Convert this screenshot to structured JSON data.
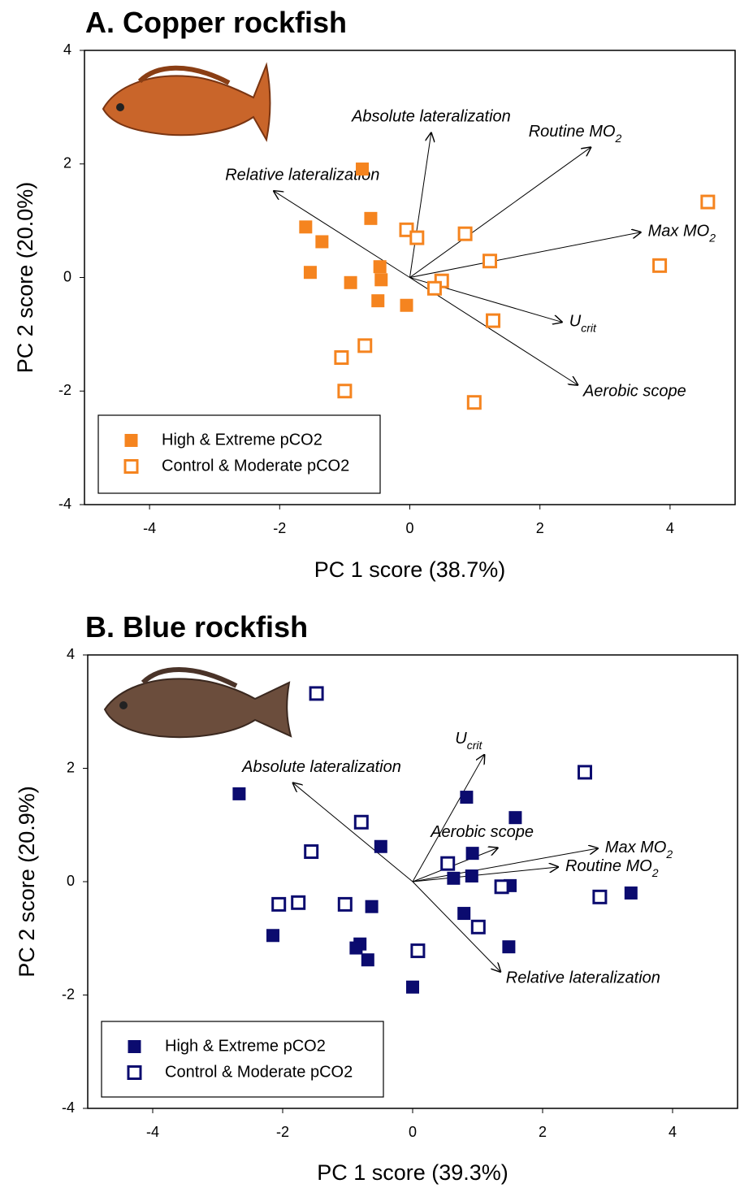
{
  "chart_data": [
    {
      "type": "scatter",
      "title": "A. Copper rockfish",
      "x_label": "PC 1 score (38.7%)",
      "y_label": "PC 2 score (20.0%)",
      "xlim": [
        -5,
        5
      ],
      "ylim": [
        -4,
        4
      ],
      "xticks": [
        -4,
        -2,
        0,
        2,
        4
      ],
      "yticks": [
        -4,
        -2,
        0,
        2,
        4
      ],
      "series": [
        {
          "name": "High & Extreme pCO2",
          "color": "#f5841f",
          "filled": true,
          "x": [
            -0.73,
            -1.6,
            -1.35,
            -0.6,
            -1.53,
            -0.91,
            -0.46,
            -0.44,
            -0.49,
            -0.05
          ],
          "values": [
            1.91,
            0.89,
            0.63,
            1.04,
            0.09,
            -0.09,
            0.19,
            -0.04,
            -0.41,
            -0.49
          ]
        },
        {
          "name": "Control & Moderate pCO2",
          "color": "#f5841f",
          "filled": false,
          "x": [
            -0.05,
            0.11,
            0.85,
            1.23,
            0.49,
            0.38,
            1.28,
            0.99,
            -1.05,
            -0.69,
            -1.0,
            3.84,
            4.58
          ],
          "values": [
            0.84,
            0.7,
            0.77,
            0.29,
            -0.06,
            -0.19,
            -0.76,
            -2.2,
            -1.41,
            -1.2,
            -2.0,
            0.21,
            1.33
          ]
        }
      ],
      "loadings": [
        {
          "text": "Absolute lateralization",
          "x": 0.33,
          "y": 2.56
        },
        {
          "text": "Routine MO",
          "sub": "2",
          "x": 2.79,
          "y": 2.3
        },
        {
          "text": "Max MO",
          "sub": "2",
          "x": 3.56,
          "y": 0.8
        },
        {
          "text": "U",
          "sub": "crit",
          "x": 2.35,
          "y": -0.79
        },
        {
          "text": "Aerobic scope",
          "x": 2.59,
          "y": -1.9
        },
        {
          "text": "Relative lateralization",
          "x": -2.1,
          "y": 1.53
        }
      ]
    },
    {
      "type": "scatter",
      "title": "B. Blue rockfish",
      "x_label": "PC 1 score (39.3%)",
      "y_label": "PC 2 score (20.9%)",
      "xlim": [
        -5,
        5
      ],
      "ylim": [
        -4,
        4
      ],
      "xticks": [
        -4,
        -2,
        0,
        2,
        4
      ],
      "yticks": [
        -4,
        -2,
        0,
        2,
        4
      ],
      "series": [
        {
          "name": "High & Extreme pCO2",
          "color": "#0b0b6f",
          "filled": true,
          "x": [
            -2.67,
            -2.15,
            -0.49,
            0.83,
            1.58,
            0.92,
            0.91,
            0.63,
            1.5,
            0.79,
            1.48,
            3.36,
            -0.63,
            -0.81,
            -0.87,
            -0.69,
            0.0
          ],
          "values": [
            1.55,
            -0.95,
            0.62,
            1.49,
            1.13,
            0.5,
            0.1,
            0.06,
            -0.07,
            -0.56,
            -1.15,
            -0.2,
            -0.44,
            -1.1,
            -1.17,
            -1.38,
            -1.86
          ]
        },
        {
          "name": "Control & Moderate pCO2",
          "color": "#0b0b6f",
          "filled": false,
          "x": [
            -1.48,
            -0.79,
            -1.56,
            -2.06,
            -1.76,
            -1.04,
            0.08,
            0.54,
            1.01,
            1.37,
            2.65,
            2.88
          ],
          "values": [
            3.32,
            1.05,
            0.53,
            -0.4,
            -0.37,
            -0.4,
            -1.22,
            0.32,
            -0.8,
            -0.09,
            1.93,
            -0.27
          ]
        }
      ],
      "loadings": [
        {
          "text": "U",
          "sub": "crit",
          "x": 1.11,
          "y": 2.25
        },
        {
          "text": "Absolute lateralization",
          "x": -1.85,
          "y": 1.75
        },
        {
          "text": "Aerobic scope",
          "x": 1.32,
          "y": 0.6
        },
        {
          "text": "Max MO",
          "sub": "2",
          "x": 2.86,
          "y": 0.59
        },
        {
          "text": "Routine MO",
          "sub": "2",
          "x": 2.25,
          "y": 0.26
        },
        {
          "text": "Relative lateralization",
          "x": 1.36,
          "y": -1.6
        }
      ]
    }
  ]
}
